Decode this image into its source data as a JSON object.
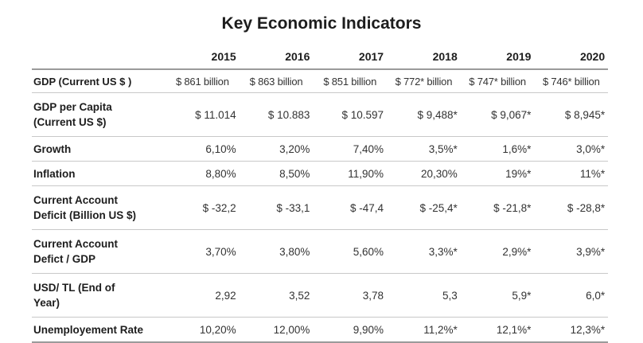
{
  "title": "Key Economic Indicators",
  "years": [
    "2015",
    "2016",
    "2017",
    "2018",
    "2019",
    "2020"
  ],
  "rows": [
    {
      "label_line1": "GDP (Current US $ )",
      "label_line2": "",
      "values": [
        "$ 861 billion",
        "$ 863 billion",
        "$ 851 billion",
        "$ 772* billion",
        "$ 747* billion",
        "$ 746* billion"
      ]
    },
    {
      "label_line1": "GDP per Capita",
      "label_line2": "(Current US $)",
      "values": [
        "$ 11.014",
        "$ 10.883",
        "$ 10.597",
        "$ 9,488*",
        "$ 9,067*",
        "$ 8,945*"
      ]
    },
    {
      "label_line1": "Growth",
      "label_line2": "",
      "values": [
        "6,10%",
        "3,20%",
        "7,40%",
        "3,5%*",
        "1,6%*",
        "3,0%*"
      ]
    },
    {
      "label_line1": "Inflation",
      "label_line2": "",
      "values": [
        "8,80%",
        "8,50%",
        "11,90%",
        "20,30%",
        "19%*",
        "11%*"
      ]
    },
    {
      "label_line1": "Current Account",
      "label_line2": "Deficit (Billion US $)",
      "values": [
        "$ -32,2",
        "$ -33,1",
        "$ -47,4",
        "$ -25,4*",
        "$ -21,8*",
        "$ -28,8*"
      ]
    },
    {
      "label_line1": "Current Account",
      "label_line2": "Defict / GDP",
      "values": [
        "3,70%",
        "3,80%",
        "5,60%",
        "3,3%*",
        "2,9%*",
        "3,9%*"
      ]
    },
    {
      "label_line1": "USD/ TL (End of",
      "label_line2": "Year)",
      "values": [
        "2,92",
        "3,52",
        "3,78",
        "5,3",
        "5,9*",
        "6,0*"
      ]
    },
    {
      "label_line1": "Unemployement Rate",
      "label_line2": "",
      "values": [
        "10,20%",
        "12,00%",
        "9,90%",
        "11,2%*",
        "12,1%*",
        "12,3%*"
      ]
    }
  ]
}
